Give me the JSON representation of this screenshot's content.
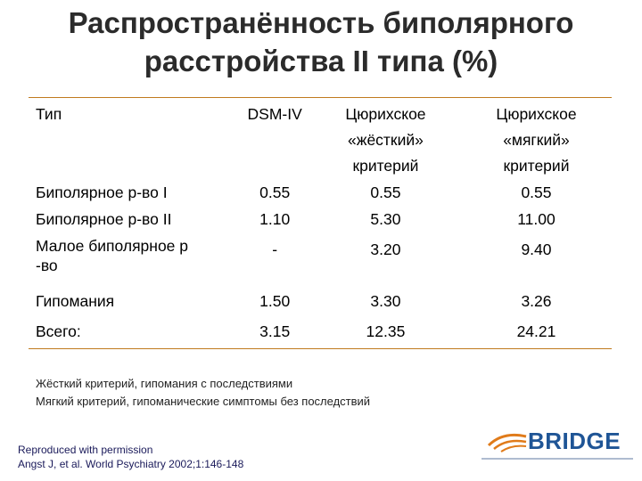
{
  "title": {
    "line1": "Распространённость биполярного",
    "line2": "расстройства II типа (%)"
  },
  "table": {
    "headers": {
      "type": "Тип",
      "dsm": "DSM-IV",
      "zurich_strict": [
        "Цюрихское",
        "«жёсткий»",
        "критерий"
      ],
      "zurich_soft": [
        "Цюрихское",
        "«мягкий»",
        "критерий"
      ]
    },
    "rows": [
      {
        "label": "Биполярное р-во I",
        "dsm": "0.55",
        "strict": "0.55",
        "soft": "0.55"
      },
      {
        "label": "Биполярное р-во II",
        "dsm": "1.10",
        "strict": "5.30",
        "soft": "11.00"
      },
      {
        "label_lines": [
          "Малое биполярное р",
          "-во"
        ],
        "dsm": "-",
        "strict": "3.20",
        "soft": "9.40"
      },
      {
        "label": "Гипомания",
        "dsm": "1.50",
        "strict": "3.30",
        "soft": "3.26"
      },
      {
        "label": "Всего:",
        "dsm": "3.15",
        "strict": "12.35",
        "soft": "24.21"
      }
    ]
  },
  "notes": [
    "Жёсткий критерий, гипомания с последствиями",
    "Мягкий критерий, гипоманические симптомы без последствий"
  ],
  "source": [
    "Reproduced with permission",
    "Angst J, et al. World Psychiatry 2002;1:146-148"
  ],
  "logo": {
    "text": "BRIDGE",
    "icon": "bridge-arch-logo",
    "colors": {
      "orange": "#e07b1a",
      "blue": "#1f5596"
    }
  },
  "colors": {
    "rule": "#c07a1e",
    "title": "#2b2b2b"
  }
}
